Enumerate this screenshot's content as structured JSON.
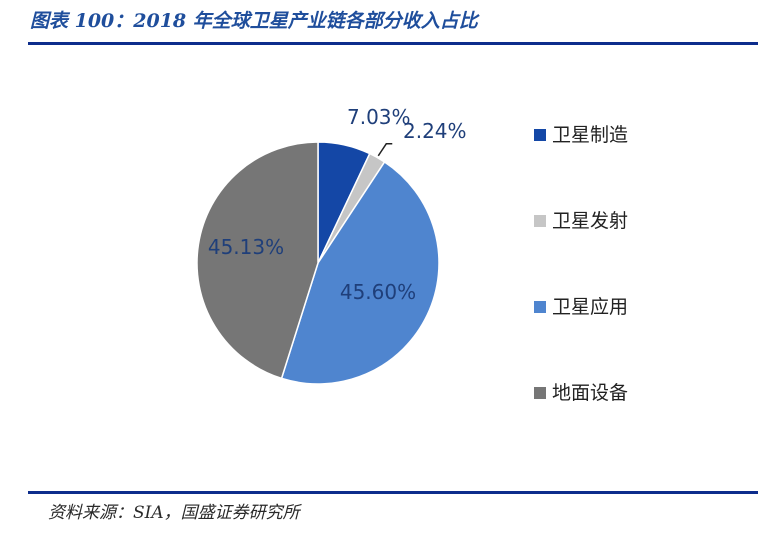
{
  "header": {
    "title": "图表 100：2018 年全球卫星产业链各部分收入占比"
  },
  "footer": {
    "source": "资料来源：SIA，国盛证券研究所"
  },
  "chart_data": {
    "type": "pie",
    "series": [
      {
        "name": "卫星制造",
        "value": 7.03,
        "label": "7.03%",
        "color": "#1447a6"
      },
      {
        "name": "卫星发射",
        "value": 2.24,
        "label": "2.24%",
        "color": "#c6c6c6"
      },
      {
        "name": "卫星应用",
        "value": 45.6,
        "label": "45.60%",
        "color": "#4f85cf"
      },
      {
        "name": "地面设备",
        "value": 45.13,
        "label": "45.13%",
        "color": "#767676"
      }
    ],
    "legend_position": "right"
  }
}
